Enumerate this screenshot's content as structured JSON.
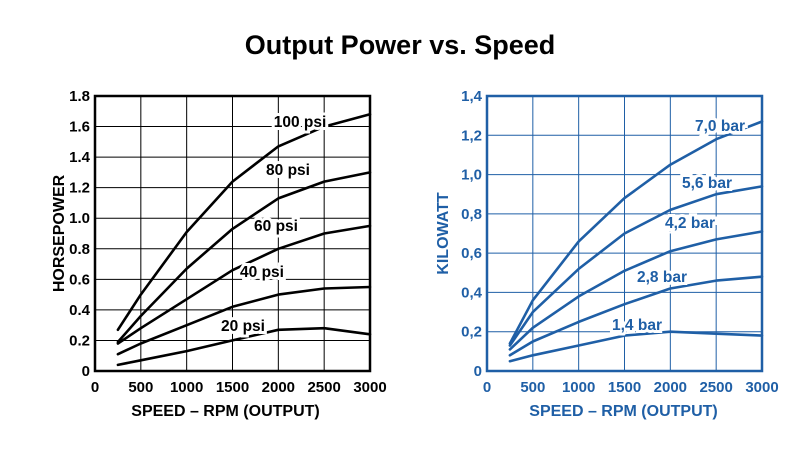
{
  "title": "Output Power vs. Speed",
  "chart_data": [
    {
      "type": "line",
      "color": "#000000",
      "xlabel": "SPEED – RPM (OUTPUT)",
      "ylabel": "HORSEPOWER",
      "xlim": [
        0,
        3000
      ],
      "ylim": [
        0,
        1.8
      ],
      "x_ticks": [
        0,
        500,
        1000,
        1500,
        2000,
        2500,
        3000
      ],
      "x_tick_labels": [
        "0",
        "500",
        "1000",
        "1500",
        "2000",
        "2500",
        "3000"
      ],
      "y_ticks": [
        0,
        0.2,
        0.4,
        0.6,
        0.8,
        1.0,
        1.2,
        1.4,
        1.6,
        1.8
      ],
      "y_tick_labels": [
        "0",
        "0.2",
        "0.4",
        "0.6",
        "0.8",
        "1.0",
        "1.2",
        "1.4",
        "1.6",
        "1.8"
      ],
      "grid": true,
      "series": [
        {
          "name": "100 psi",
          "x": [
            250,
            500,
            1000,
            1500,
            2000,
            2500,
            3000
          ],
          "y": [
            0.27,
            0.5,
            0.91,
            1.24,
            1.47,
            1.6,
            1.68
          ]
        },
        {
          "name": "80 psi",
          "x": [
            250,
            500,
            1000,
            1500,
            2000,
            2500,
            3000
          ],
          "y": [
            0.19,
            0.36,
            0.67,
            0.93,
            1.13,
            1.24,
            1.3
          ]
        },
        {
          "name": "60 psi",
          "x": [
            250,
            500,
            1000,
            1500,
            2000,
            2500,
            3000
          ],
          "y": [
            0.18,
            0.28,
            0.47,
            0.66,
            0.8,
            0.9,
            0.95
          ]
        },
        {
          "name": "40 psi",
          "x": [
            250,
            500,
            1000,
            1500,
            2000,
            2500,
            3000
          ],
          "y": [
            0.11,
            0.18,
            0.3,
            0.42,
            0.5,
            0.54,
            0.55
          ]
        },
        {
          "name": "20 psi",
          "x": [
            250,
            500,
            1000,
            1500,
            2000,
            2500,
            3000
          ],
          "y": [
            0.04,
            0.07,
            0.13,
            0.2,
            0.27,
            0.28,
            0.24
          ]
        }
      ]
    },
    {
      "type": "line",
      "color": "#1f5fa6",
      "xlabel": "SPEED – RPM (OUTPUT)",
      "ylabel": "KILOWATT",
      "xlim": [
        0,
        3000
      ],
      "ylim": [
        0,
        1.4
      ],
      "x_ticks": [
        0,
        500,
        1000,
        1500,
        2000,
        2500,
        3000
      ],
      "x_tick_labels": [
        "0",
        "500",
        "1000",
        "1500",
        "2000",
        "2500",
        "3000"
      ],
      "y_ticks": [
        0,
        0.2,
        0.4,
        0.6,
        0.8,
        1.0,
        1.2,
        1.4
      ],
      "y_tick_labels": [
        "0",
        "0,2",
        "0,4",
        "0,6",
        "0,8",
        "1,0",
        "1,2",
        "1,4"
      ],
      "grid": true,
      "series": [
        {
          "name": "7,0 bar",
          "x": [
            250,
            500,
            1000,
            1500,
            2000,
            2500,
            3000
          ],
          "y": [
            0.14,
            0.36,
            0.66,
            0.88,
            1.05,
            1.18,
            1.27
          ]
        },
        {
          "name": "5,6 bar",
          "x": [
            250,
            500,
            1000,
            1500,
            2000,
            2500,
            3000
          ],
          "y": [
            0.13,
            0.3,
            0.52,
            0.7,
            0.82,
            0.9,
            0.94
          ]
        },
        {
          "name": "4,2 bar",
          "x": [
            250,
            500,
            1000,
            1500,
            2000,
            2500,
            3000
          ],
          "y": [
            0.11,
            0.22,
            0.38,
            0.51,
            0.61,
            0.67,
            0.71
          ]
        },
        {
          "name": "2,8 bar",
          "x": [
            250,
            500,
            1000,
            1500,
            2000,
            2500,
            3000
          ],
          "y": [
            0.08,
            0.15,
            0.25,
            0.34,
            0.42,
            0.46,
            0.48
          ]
        },
        {
          "name": "1,4 bar",
          "x": [
            250,
            500,
            1000,
            1500,
            2000,
            2500,
            3000
          ],
          "y": [
            0.05,
            0.08,
            0.13,
            0.18,
            0.2,
            0.19,
            0.18
          ]
        }
      ]
    }
  ]
}
